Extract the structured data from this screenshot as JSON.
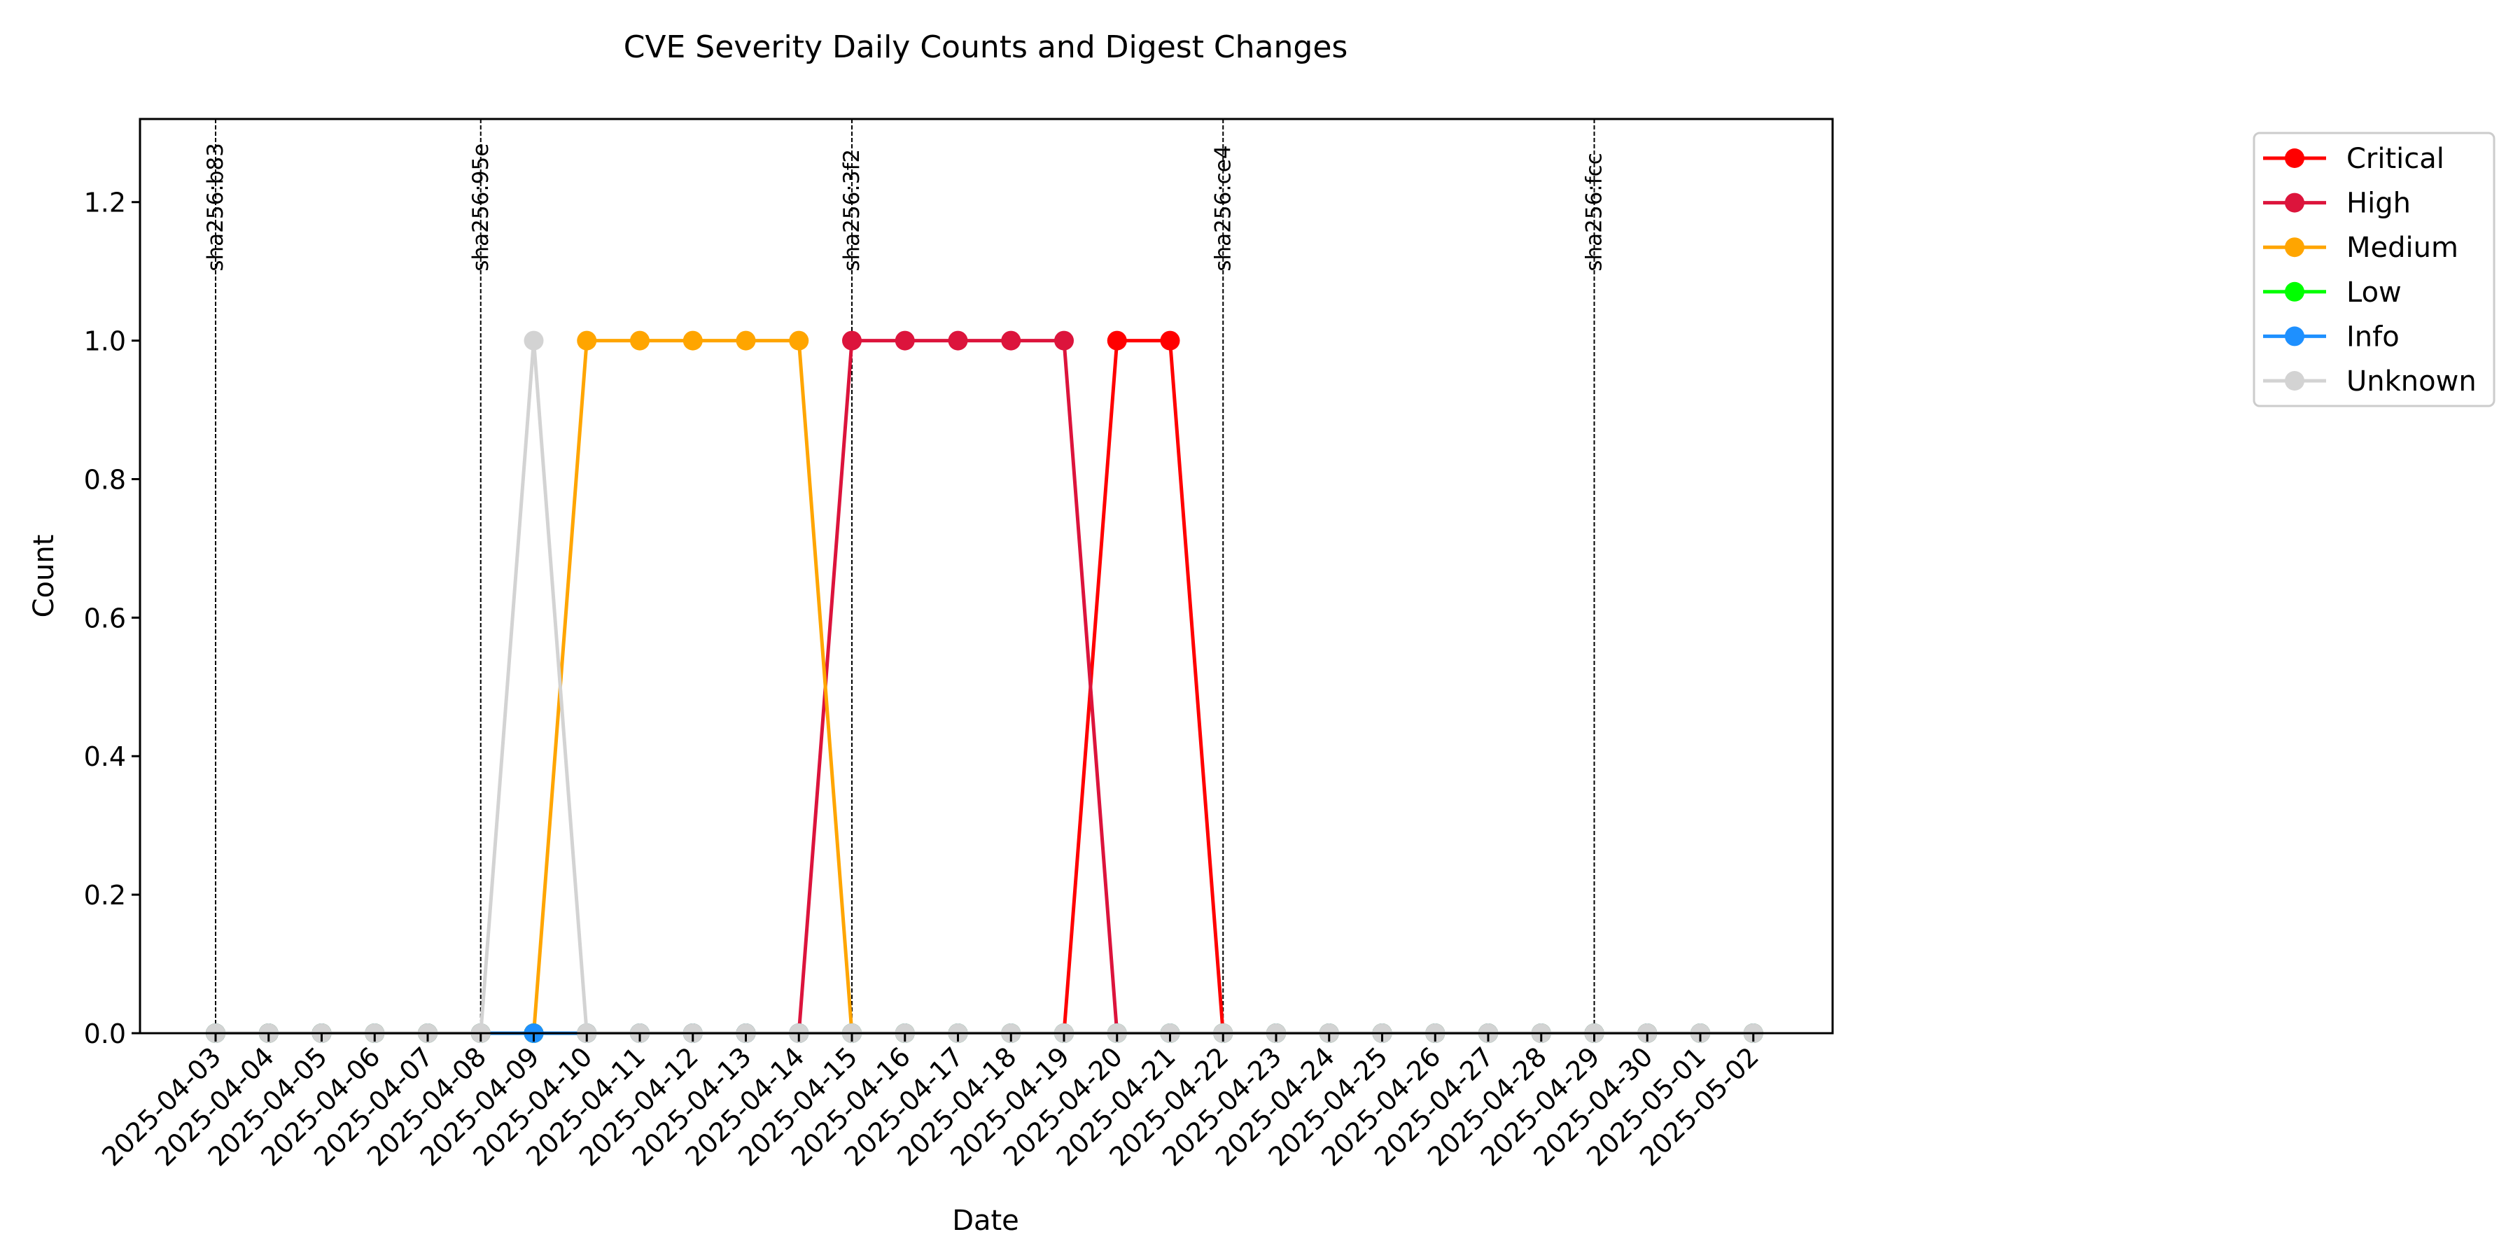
{
  "chart_data": {
    "type": "line",
    "title": "CVE Severity Daily Counts and Digest Changes",
    "xlabel": "Date",
    "ylabel": "Count",
    "ylim": [
      0,
      1.32
    ],
    "yticks": [
      "0.0",
      "0.2",
      "0.4",
      "0.6",
      "0.8",
      "1.0",
      "1.2"
    ],
    "grid": false,
    "legend_position": "outside-right-top",
    "x": [
      "2025-04-03",
      "2025-04-04",
      "2025-04-05",
      "2025-04-06",
      "2025-04-07",
      "2025-04-08",
      "2025-04-09",
      "2025-04-10",
      "2025-04-11",
      "2025-04-12",
      "2025-04-13",
      "2025-04-14",
      "2025-04-15",
      "2025-04-16",
      "2025-04-17",
      "2025-04-18",
      "2025-04-19",
      "2025-04-20",
      "2025-04-21",
      "2025-04-22",
      "2025-04-23",
      "2025-04-24",
      "2025-04-25",
      "2025-04-26",
      "2025-04-27",
      "2025-04-28",
      "2025-04-29",
      "2025-04-30",
      "2025-05-01",
      "2025-05-02"
    ],
    "series": [
      {
        "name": "Critical",
        "color": "#ff0000",
        "values": [
          0,
          0,
          0,
          0,
          0,
          0,
          0,
          0,
          0,
          0,
          0,
          0,
          0,
          0,
          0,
          0,
          0,
          1,
          1,
          0,
          0,
          0,
          0,
          0,
          0,
          0,
          0,
          0,
          0,
          0
        ]
      },
      {
        "name": "High",
        "color": "#dc143c",
        "values": [
          0,
          0,
          0,
          0,
          0,
          0,
          0,
          0,
          0,
          0,
          0,
          0,
          1,
          1,
          1,
          1,
          1,
          0,
          0,
          0,
          0,
          0,
          0,
          0,
          0,
          0,
          0,
          0,
          0,
          0
        ]
      },
      {
        "name": "Medium",
        "color": "#ffa500",
        "values": [
          0,
          0,
          0,
          0,
          0,
          0,
          0,
          1,
          1,
          1,
          1,
          1,
          0,
          0,
          0,
          0,
          0,
          0,
          0,
          0,
          0,
          0,
          0,
          0,
          0,
          0,
          0,
          0,
          0,
          0
        ]
      },
      {
        "name": "Low",
        "color": "#00ff00",
        "values": [
          0,
          0,
          0,
          0,
          0,
          0,
          0,
          0,
          0,
          0,
          0,
          0,
          0,
          0,
          0,
          0,
          0,
          0,
          0,
          0,
          0,
          0,
          0,
          0,
          0,
          0,
          0,
          0,
          0,
          0
        ]
      },
      {
        "name": "Info",
        "color": "#1e90ff",
        "values": [
          0,
          0,
          0,
          0,
          0,
          0,
          0,
          0,
          0,
          0,
          0,
          0,
          0,
          0,
          0,
          0,
          0,
          0,
          0,
          0,
          0,
          0,
          0,
          0,
          0,
          0,
          0,
          0,
          0,
          0
        ]
      },
      {
        "name": "Unknown",
        "color": "#d3d3d3",
        "values": [
          0,
          0,
          0,
          0,
          0,
          0,
          1,
          0,
          0,
          0,
          0,
          0,
          0,
          0,
          0,
          0,
          0,
          0,
          0,
          0,
          0,
          0,
          0,
          0,
          0,
          0,
          0,
          0,
          0,
          0
        ]
      }
    ],
    "annotations": [
      {
        "x": "2025-04-03",
        "label": "sha256:b83"
      },
      {
        "x": "2025-04-08",
        "label": "sha256:95e"
      },
      {
        "x": "2025-04-15",
        "label": "sha256:3f2"
      },
      {
        "x": "2025-04-22",
        "label": "sha256:ce4"
      },
      {
        "x": "2025-04-29",
        "label": "sha256:fcc"
      }
    ]
  }
}
